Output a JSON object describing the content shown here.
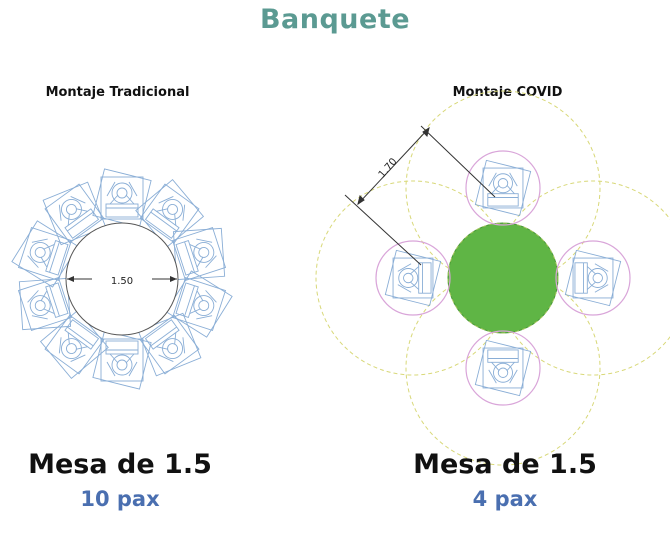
{
  "title": "Banquete",
  "layouts": [
    {
      "heading": "Montaje Tradicional",
      "dimension": "1.50",
      "table": "Mesa de 1.5",
      "capacity": "10 pax",
      "seats": 10
    },
    {
      "heading": "Montaje COVID",
      "dimension": "1.70",
      "table": "Mesa de 1.5",
      "capacity": "4 pax",
      "seats": 4
    }
  ],
  "colors": {
    "title": "#5b9a92",
    "chair_lines": "#8aaed6",
    "table_fill": "#5fb545",
    "distance_ring": "#d9a5d9",
    "buffer_ring": "#d8d878",
    "capacity_text": "#4a6fb0"
  }
}
